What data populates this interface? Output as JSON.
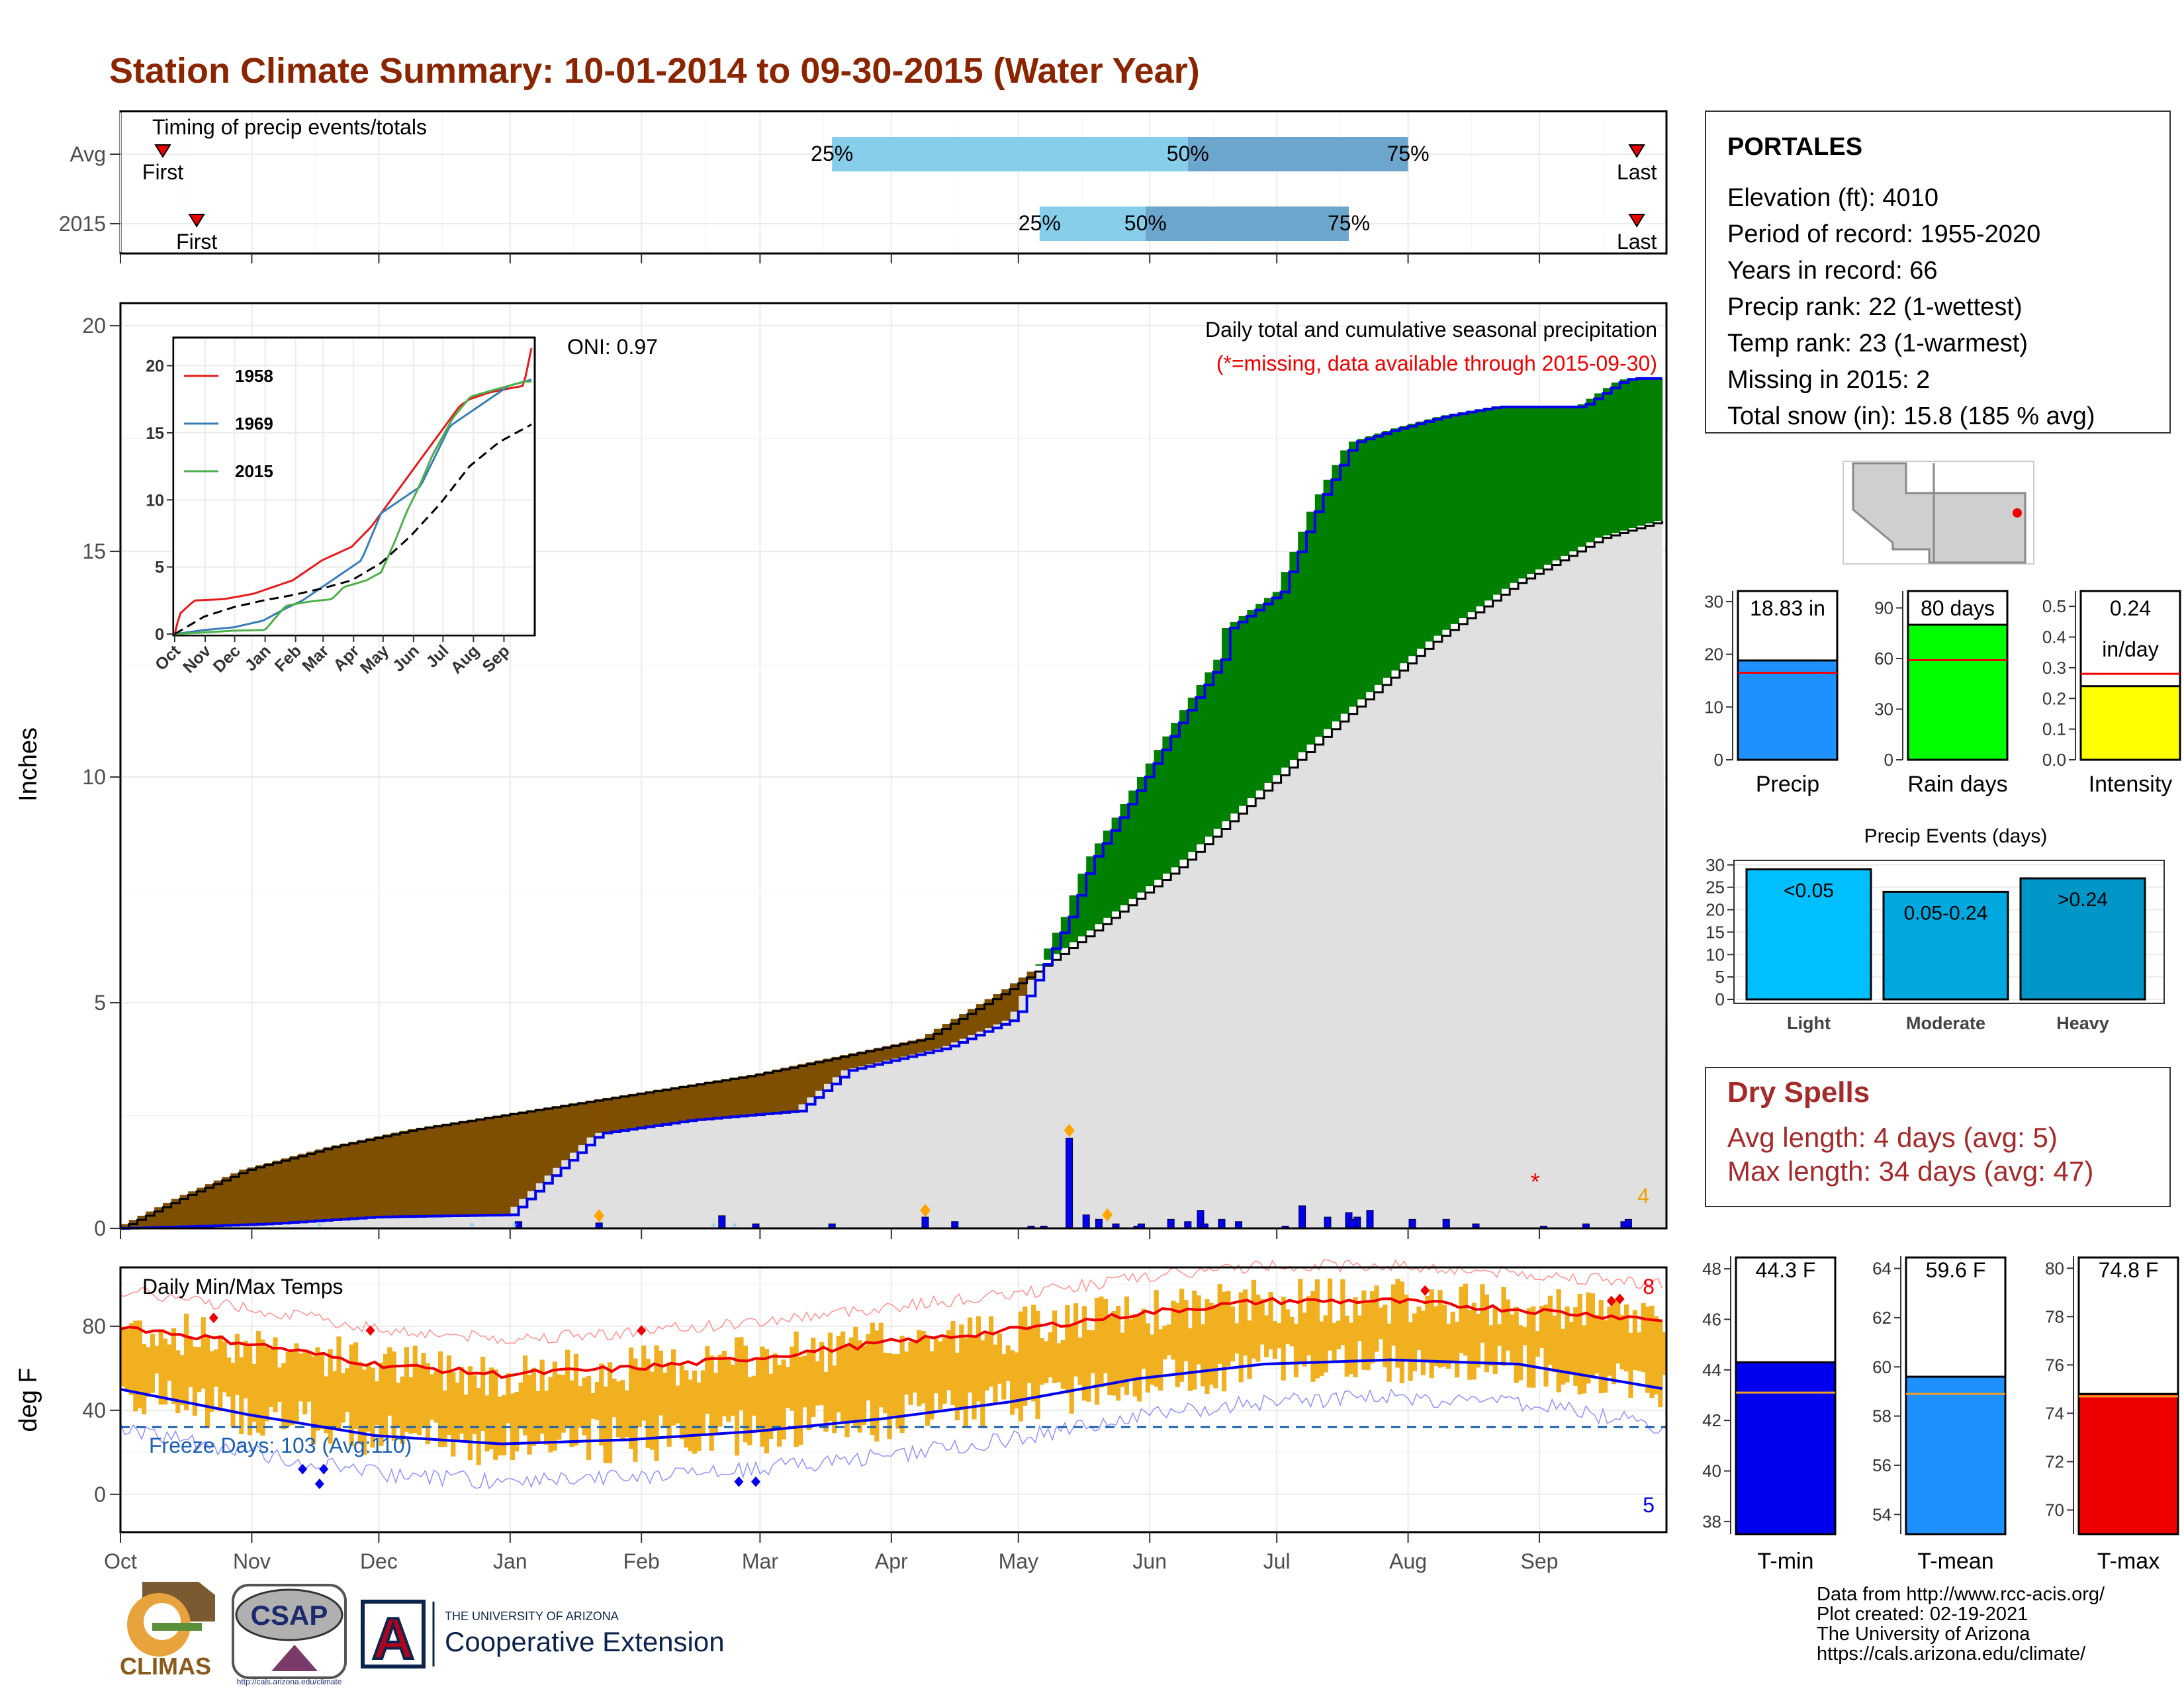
{
  "title": "Station Climate Summary: 10-01-2014 to 09-30-2015 (Water Year)",
  "colors": {
    "title": "#8b2500",
    "drySpells": "#a52a2a",
    "green": "#008000",
    "brown": "#7f4f00",
    "gray": "#e0e0e0",
    "blue": "#0000ee",
    "orange": "#f0b020",
    "red": "#ee0000",
    "lightBlue": "#87ceeb",
    "midBlue": "#6ca6cd"
  },
  "timing": {
    "title": "Timing of precip events/totals",
    "rows": [
      {
        "label": "Avg",
        "first_label": "First",
        "last_label": "Last",
        "q25": "25%",
        "q50": "50%",
        "q75": "75%"
      },
      {
        "label": "2015",
        "first_label": "First",
        "last_label": "Last",
        "q25": "25%",
        "q50": "50%",
        "q75": "75%"
      }
    ]
  },
  "station": {
    "name": "PORTALES",
    "lines": [
      "Elevation (ft): 4010",
      "Period of record: 1955-2020",
      "Years in record: 66",
      "Precip rank: 22 (1-wettest)",
      "Temp rank: 23 (1-warmest)",
      "Missing in 2015: 2",
      "Total snow (in): 15.8 (185 % avg)"
    ]
  },
  "precip_panel": {
    "ylabel": "Inches",
    "yticks": [
      "0",
      "5",
      "10",
      "15",
      "20"
    ],
    "months": [
      "Oct",
      "Nov",
      "Dec",
      "Jan",
      "Feb",
      "Mar",
      "Apr",
      "May",
      "Jun",
      "Jul",
      "Aug",
      "Sep"
    ],
    "caption": "Daily total and cumulative seasonal precipitation",
    "missing_note": "(*=missing, data available through 2015-09-30)",
    "oni": "ONI: 0.97",
    "count_label": "4",
    "inset": {
      "yticks": [
        "0",
        "5",
        "10",
        "15",
        "20"
      ],
      "months": [
        "Oct",
        "Nov",
        "Dec",
        "Jan",
        "Feb",
        "Mar",
        "Apr",
        "May",
        "Jun",
        "Jul",
        "Aug",
        "Sep"
      ],
      "legend": [
        "1958",
        "1969",
        "2015"
      ]
    }
  },
  "temp_panel": {
    "ylabel": "deg F",
    "title": "Daily Min/Max Temps",
    "yticks": [
      "0",
      "40",
      "80"
    ],
    "freeze_label": "Freeze Days: 103 (Avg:110)",
    "max_count": "8",
    "min_count": "5"
  },
  "bars_precip": {
    "precip": {
      "label": "Precip",
      "value_text": "18.83 in",
      "yticks": [
        "0",
        "10",
        "20",
        "30"
      ]
    },
    "rain_days": {
      "label": "Rain days",
      "value_text": "80 days",
      "yticks": [
        "0",
        "30",
        "60",
        "90"
      ]
    },
    "intensity": {
      "label": "Intensity",
      "value_text": "0.24",
      "value_unit": "in/day",
      "yticks": [
        "0.0",
        "0.1",
        "0.2",
        "0.3",
        "0.4",
        "0.5"
      ]
    }
  },
  "precip_events": {
    "title": "Precip Events (days)",
    "yticks": [
      "0",
      "5",
      "10",
      "15",
      "20",
      "25",
      "30"
    ],
    "bars": [
      {
        "category": "Light",
        "label": "<0.05"
      },
      {
        "category": "Moderate",
        "label": "0.05-0.24"
      },
      {
        "category": "Heavy",
        "label": ">0.24"
      }
    ]
  },
  "dry_spells": {
    "title": "Dry Spells",
    "avg": "Avg length: 4 days (avg: 5)",
    "max": "Max length: 34 days (avg: 47)"
  },
  "temp_bars": {
    "tmin": {
      "label": "T-min",
      "value_text": "44.3 F",
      "yticks": [
        "38",
        "40",
        "42",
        "44",
        "46",
        "48"
      ]
    },
    "tmean": {
      "label": "T-mean",
      "value_text": "59.6 F",
      "yticks": [
        "54",
        "56",
        "58",
        "60",
        "62",
        "64"
      ]
    },
    "tmax": {
      "label": "T-max",
      "value_text": "74.8 F",
      "yticks": [
        "70",
        "72",
        "74",
        "76",
        "78",
        "80"
      ]
    }
  },
  "footer": [
    "Data from http://www.rcc-acis.org/",
    "Plot created: 02-19-2021",
    "The University of Arizona",
    "https://cals.arizona.edu/climate/"
  ],
  "logos": {
    "climas": "CLIMAS",
    "csap": "CSAP",
    "csap_url": "http://cals.arizona.edu/climate",
    "ua_top": "THE UNIVERSITY OF ARIZONA",
    "ua_bottom": "Cooperative Extension",
    "ua_letter": "A"
  },
  "chart_data": [
    {
      "type": "bar",
      "name": "timing",
      "categories": [
        "Avg",
        "2015"
      ],
      "x_axis": "day of water year (Oct 1 = 0)",
      "xlim": [
        0,
        365
      ],
      "first_day": [
        10,
        18
      ],
      "last_day": [
        358,
        358
      ],
      "q25_day": [
        168,
        217
      ],
      "q50_day": [
        252,
        242
      ],
      "q75_day": [
        304,
        290
      ]
    },
    {
      "type": "area",
      "name": "cumulative precipitation",
      "ylabel": "Inches",
      "ylim": [
        0,
        20.5
      ],
      "x_axis": "day of water year",
      "xlim": [
        0,
        365
      ],
      "average_cumulative": {
        "x": [
          0,
          15,
          30,
          50,
          70,
          90,
          110,
          130,
          150,
          170,
          190,
          210,
          230,
          250,
          270,
          290,
          310,
          330,
          350,
          365
        ],
        "y": [
          0,
          0.7,
          1.3,
          1.8,
          2.2,
          2.5,
          2.8,
          3.1,
          3.4,
          3.8,
          4.2,
          5.3,
          6.6,
          8.0,
          9.7,
          11.4,
          13.0,
          14.3,
          15.3,
          15.7
        ]
      },
      "year_cumulative": {
        "x": [
          0,
          20,
          35,
          60,
          92,
          100,
          113,
          135,
          160,
          172,
          195,
          210,
          212,
          224,
          229,
          236,
          242,
          250,
          260,
          262,
          274,
          283,
          291,
          301,
          313,
          325,
          345,
          355,
          358,
          365
        ],
        "y": [
          0,
          0.05,
          0.1,
          0.25,
          0.3,
          1.0,
          2.1,
          2.4,
          2.6,
          3.5,
          4.0,
          4.6,
          4.8,
          6.9,
          8.1,
          9.1,
          10.0,
          11.2,
          12.6,
          13.3,
          14.1,
          16.1,
          17.4,
          17.7,
          18.0,
          18.2,
          18.2,
          18.8,
          18.83,
          18.83
        ]
      },
      "daily_precip": {
        "x": [
          94,
          113,
          142,
          150,
          168,
          190,
          197,
          215,
          218,
          224,
          228,
          231,
          235,
          240,
          241,
          248,
          252,
          255,
          256,
          260,
          264,
          275,
          279,
          285,
          290,
          292,
          291,
          295,
          305,
          313,
          320,
          336,
          346,
          355,
          356
        ],
        "y": [
          0.15,
          0.12,
          0.28,
          0.1,
          0.1,
          0.25,
          0.15,
          0.05,
          0.05,
          2.0,
          0.3,
          0.2,
          0.1,
          0.05,
          0.1,
          0.2,
          0.15,
          0.4,
          0.1,
          0.2,
          0.15,
          0.05,
          0.5,
          0.25,
          0.35,
          0.25,
          0.2,
          0.4,
          0.2,
          0.2,
          0.1,
          0.05,
          0.1,
          0.15,
          0.2
        ]
      },
      "oni": 0.97
    },
    {
      "type": "line",
      "name": "inset cumulative precipitation",
      "ylim": [
        0,
        22
      ],
      "x_axis": "day of water year",
      "series": [
        {
          "name": "1958",
          "x": [
            0,
            5,
            20,
            50,
            80,
            100,
            120,
            150,
            180,
            200,
            220,
            240,
            250,
            260,
            270,
            280,
            290,
            300,
            320,
            340,
            355,
            365
          ],
          "y": [
            0,
            1.5,
            2.5,
            2.6,
            3.0,
            3.5,
            4.0,
            5.5,
            6.5,
            8.0,
            10.0,
            12.0,
            13.0,
            14.0,
            15.0,
            16.0,
            17.0,
            17.5,
            18.0,
            18.3,
            18.5,
            22.0
          ]
        },
        {
          "name": "1969",
          "x": [
            0,
            30,
            60,
            90,
            110,
            130,
            150,
            170,
            180,
            190,
            210,
            230,
            250,
            270,
            280,
            290,
            300,
            320,
            340,
            365
          ],
          "y": [
            0,
            0.3,
            0.5,
            1.0,
            1.8,
            2.5,
            3.5,
            4.5,
            5.0,
            5.5,
            9.0,
            10.0,
            11.0,
            14.0,
            15.5,
            16.0,
            16.5,
            17.5,
            18.5,
            19.0
          ]
        },
        {
          "name": "2015",
          "x": [
            0,
            60,
            92,
            100,
            113,
            135,
            160,
            172,
            195,
            210,
            224,
            236,
            250,
            262,
            283,
            301,
            325,
            355,
            365
          ],
          "y": [
            0,
            0.25,
            0.3,
            1.0,
            2.1,
            2.4,
            2.6,
            3.5,
            4.0,
            4.6,
            6.9,
            9.1,
            11.2,
            13.3,
            16.1,
            17.7,
            18.2,
            18.8,
            18.83
          ]
        },
        {
          "name": "average",
          "x": [
            0,
            30,
            60,
            90,
            120,
            150,
            180,
            210,
            240,
            270,
            300,
            330,
            365
          ],
          "y": [
            0,
            1.3,
            2.0,
            2.5,
            2.9,
            3.4,
            4.0,
            5.3,
            7.3,
            9.7,
            12.5,
            14.3,
            15.7
          ]
        }
      ]
    },
    {
      "type": "line",
      "name": "daily temperatures",
      "ylabel": "deg F",
      "ylim": [
        -18,
        108
      ],
      "x_axis": "day of water year",
      "freeze_line": 32,
      "freeze_days": 103,
      "freeze_days_avg": 110,
      "series": [
        {
          "name": "average max",
          "x": [
            0,
            30,
            60,
            90,
            120,
            150,
            180,
            210,
            240,
            270,
            300,
            330,
            365
          ],
          "y": [
            80,
            72,
            62,
            57,
            60,
            65,
            72,
            78,
            86,
            92,
            92,
            88,
            83
          ]
        },
        {
          "name": "average min",
          "x": [
            0,
            30,
            60,
            90,
            120,
            150,
            180,
            210,
            240,
            270,
            300,
            330,
            365
          ],
          "y": [
            50,
            38,
            28,
            24,
            26,
            30,
            36,
            44,
            55,
            62,
            64,
            62,
            50
          ]
        }
      ]
    },
    {
      "type": "bar",
      "name": "summary bars",
      "categories": [
        "Precip",
        "Rain days",
        "Intensity"
      ],
      "values": [
        18.83,
        80,
        0.24
      ],
      "averages": [
        16.5,
        59,
        0.28
      ],
      "ylims": [
        [
          0,
          32
        ],
        [
          0,
          100
        ],
        [
          0,
          0.55
        ]
      ]
    },
    {
      "type": "bar",
      "name": "Precip Events (days)",
      "categories": [
        "Light",
        "Moderate",
        "Heavy"
      ],
      "values": [
        29,
        24,
        27
      ],
      "ylim": [
        0,
        31
      ]
    },
    {
      "type": "bar",
      "name": "temperature summary",
      "categories": [
        "T-min",
        "T-mean",
        "T-max"
      ],
      "values": [
        44.3,
        59.6,
        74.8
      ],
      "averages": [
        43.1,
        58.9,
        74.7
      ],
      "ylims": [
        [
          37.5,
          48.5
        ],
        [
          53.2,
          64.5
        ],
        [
          69.0,
          80.5
        ]
      ]
    }
  ]
}
